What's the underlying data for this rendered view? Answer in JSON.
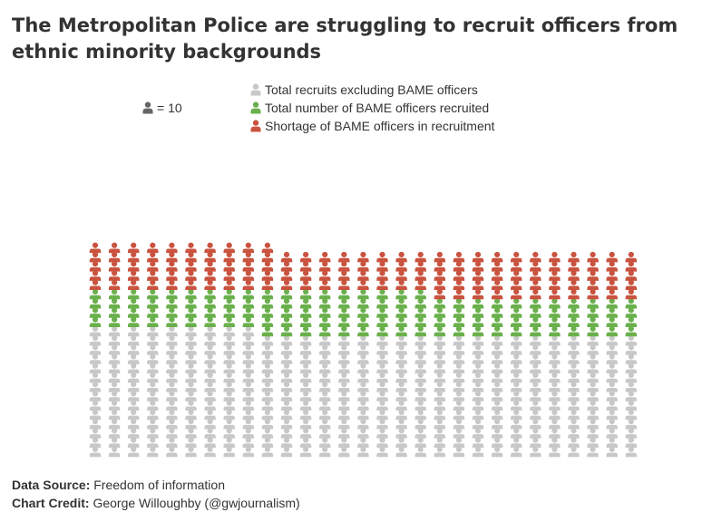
{
  "title": "The Metropolitan Police are struggling to recruit officers from ethnic minority backgrounds",
  "scale_label": "= 10",
  "legend": [
    {
      "label": "Total recruits excluding BAME officers",
      "color": "#c8c8c8"
    },
    {
      "label": "Total number of BAME officers recruited",
      "color": "#6ab04c"
    },
    {
      "label": "Shortage of BAME officers in recruitment",
      "color": "#c9533f"
    }
  ],
  "footer": {
    "source_label": "Data Source:",
    "source_value": "Freedom of information",
    "credit_label": "Chart Credit:",
    "credit_value": "George Willoughby (@gwjournalism)"
  },
  "chart_data": {
    "type": "waffle",
    "unit": 10,
    "unit_label": "= 10",
    "columns": 29,
    "series": [
      {
        "name": "Total recruits excluding BAME officers",
        "color": "#c8c8c8",
        "icons": 386
      },
      {
        "name": "Total number of BAME officers recruited",
        "color": "#6ab04c",
        "icons": 125
      },
      {
        "name": "Shortage of BAME officers in recruitment",
        "color": "#c9533f",
        "icons": 137
      }
    ],
    "total_icons": 648
  }
}
